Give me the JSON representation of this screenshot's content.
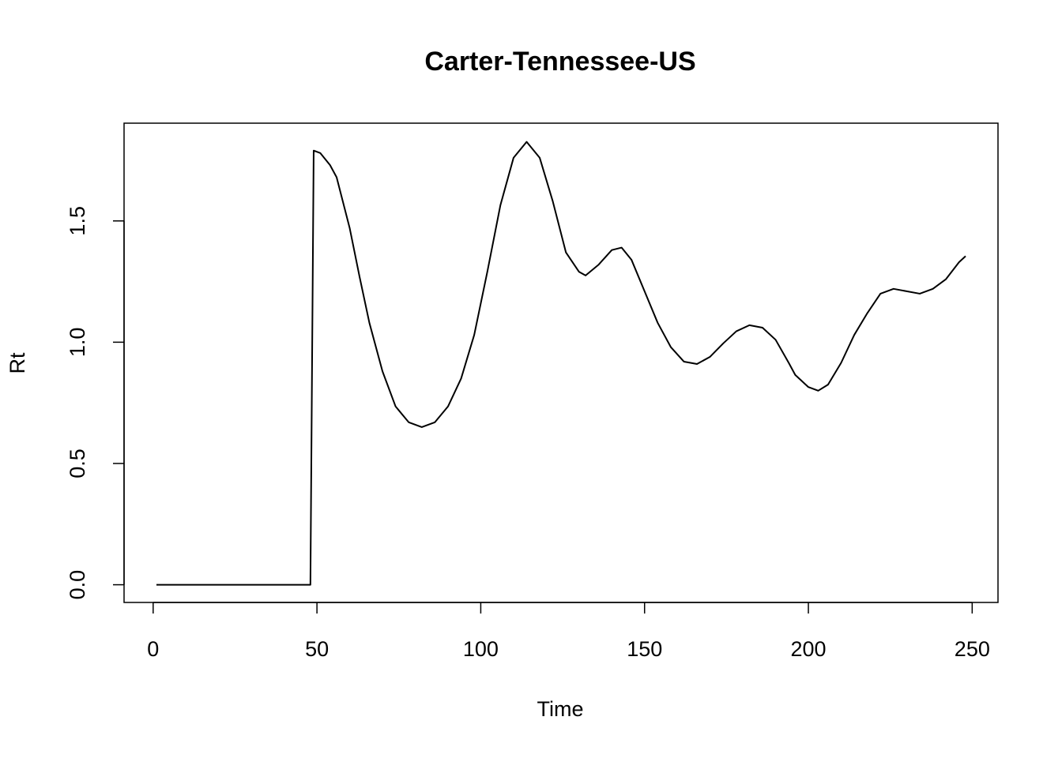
{
  "chart_data": {
    "type": "line",
    "title": "Carter-Tennessee-US",
    "xlabel": "Time",
    "ylabel": "Rt",
    "x": [
      1,
      48,
      49,
      51,
      54,
      56,
      60,
      63,
      66,
      70,
      74,
      78,
      82,
      86,
      90,
      94,
      98,
      102,
      106,
      110,
      114,
      118,
      122,
      126,
      130,
      132,
      136,
      140,
      143,
      146,
      150,
      154,
      158,
      162,
      166,
      170,
      174,
      178,
      182,
      186,
      190,
      194,
      196,
      200,
      203,
      206,
      210,
      214,
      218,
      222,
      226,
      230,
      234,
      238,
      242,
      246,
      248
    ],
    "series": [
      {
        "name": "Rt",
        "color": "#000000",
        "values": [
          0,
          0,
          1.79,
          1.78,
          1.73,
          1.68,
          1.47,
          1.27,
          1.08,
          0.88,
          0.735,
          0.67,
          0.65,
          0.67,
          0.735,
          0.85,
          1.03,
          1.29,
          1.565,
          1.76,
          1.826,
          1.76,
          1.58,
          1.37,
          1.29,
          1.275,
          1.32,
          1.38,
          1.39,
          1.34,
          1.21,
          1.08,
          0.98,
          0.92,
          0.91,
          0.94,
          0.995,
          1.045,
          1.07,
          1.06,
          1.01,
          0.915,
          0.865,
          0.815,
          0.8,
          0.825,
          0.915,
          1.03,
          1.12,
          1.2,
          1.22,
          1.21,
          1.2,
          1.22,
          1.26,
          1.33,
          1.355
        ]
      }
    ],
    "xlim": [
      -8.88,
      257.88
    ],
    "ylim": [
      -0.073,
      1.903
    ],
    "xticks": [
      0,
      50,
      100,
      150,
      200,
      250
    ],
    "yticks": [
      {
        "value": 0,
        "label": "0.0"
      },
      0.5,
      {
        "value": 1,
        "label": "1.0"
      },
      1.5
    ]
  }
}
